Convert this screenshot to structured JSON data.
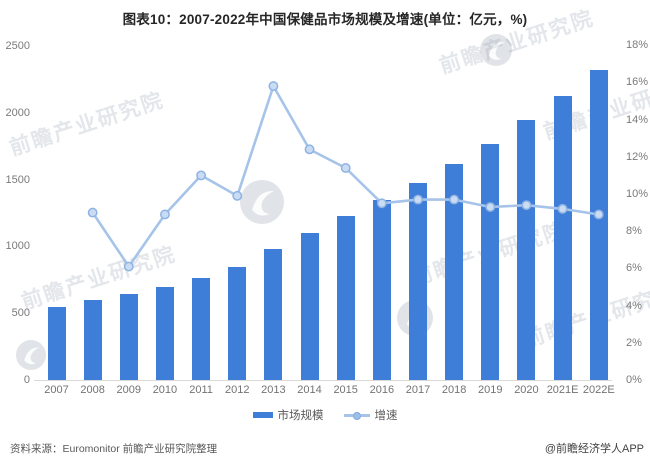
{
  "title": "图表10：2007-2022年中国保健品市场规模及增速(单位：亿元，%)",
  "chart_data": {
    "type": "bar+line",
    "categories": [
      "2007",
      "2008",
      "2009",
      "2010",
      "2011",
      "2012",
      "2013",
      "2014",
      "2015",
      "2016",
      "2017",
      "2018",
      "2019",
      "2020",
      "2021E",
      "2022E"
    ],
    "series": [
      {
        "name": "市场规模",
        "type": "bar",
        "axis": "left",
        "unit": "亿元",
        "values": [
          550,
          600,
          640,
          695,
          765,
          845,
          980,
          1100,
          1230,
          1345,
          1475,
          1620,
          1770,
          1945,
          2125,
          2320
        ]
      },
      {
        "name": "增速",
        "type": "line",
        "axis": "right",
        "unit": "%",
        "values": [
          null,
          9.0,
          6.1,
          8.9,
          11.0,
          9.9,
          15.8,
          12.4,
          11.4,
          9.5,
          9.7,
          9.7,
          9.3,
          9.4,
          9.2,
          8.9
        ]
      }
    ],
    "left_axis": {
      "ticks": [
        "2500",
        "2000",
        "1500",
        "1000",
        "500",
        "0"
      ],
      "min": 0,
      "max": 2500
    },
    "right_axis": {
      "ticks": [
        "18%",
        "16%",
        "14%",
        "12%",
        "10%",
        "8%",
        "6%",
        "4%",
        "2%",
        "0%"
      ],
      "min": 0,
      "max": 18
    },
    "grid": "off",
    "legend_position": "bottom",
    "colors": {
      "bar": "#3E7DD8",
      "line": "#A6C3E9",
      "marker_fill": "#C9DCF3",
      "marker_stroke": "#8FB3E2",
      "axis_line": "#D9D9D9",
      "tick_text": "#7A7A7A"
    }
  },
  "legend": {
    "items": [
      {
        "label": "市场规模",
        "swatch": "bar"
      },
      {
        "label": "增速",
        "swatch": "line-dot"
      }
    ]
  },
  "footer": {
    "source": "资料来源：Euromonitor 前瞻产业研究院整理",
    "credit": "@前瞻经济学人APP"
  },
  "watermark": {
    "text": "前瞻产业研究院"
  }
}
